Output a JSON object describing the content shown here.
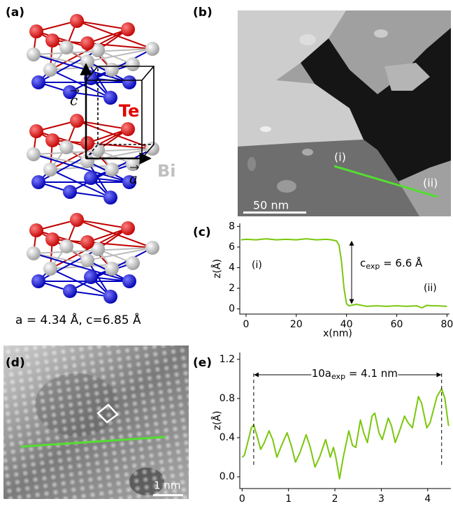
{
  "figure": {
    "panel_labels": [
      "(a)",
      "(b)",
      "(c)",
      "(d)",
      "(e)"
    ],
    "element_labels": [
      "Te",
      "Bi"
    ],
    "vector_labels": [
      "c",
      "a"
    ],
    "lattice_text": "a = 4.34 Å,  c=6.85 Å",
    "scale_bar_b": "50 nm",
    "scale_bar_d": "1 nm",
    "line_end_labels": [
      "(i)",
      "(ii)"
    ]
  },
  "chart_data": [
    {
      "type": "line",
      "xlabel": "x(nm)",
      "ylabel": "z(Å)",
      "x": [
        -2,
        0,
        4,
        8,
        12,
        16,
        20,
        24,
        28,
        32,
        34,
        36,
        37,
        38,
        39,
        40,
        41,
        42,
        44,
        48,
        52,
        56,
        60,
        64,
        68,
        70,
        72,
        74,
        76,
        80
      ],
      "series": [
        {
          "color": "#7ac70c",
          "values": [
            6.7,
            6.75,
            6.7,
            6.8,
            6.7,
            6.75,
            6.7,
            6.8,
            6.7,
            6.75,
            6.7,
            6.6,
            6.2,
            4.6,
            2.0,
            0.5,
            0.3,
            0.35,
            0.45,
            0.25,
            0.3,
            0.25,
            0.3,
            0.25,
            0.3,
            0.1,
            0.35,
            0.3,
            0.3,
            0.25
          ]
        }
      ],
      "xlim": [
        -2.5,
        81
      ],
      "ylim": [
        -0.5,
        8.3
      ],
      "xticks": [
        0,
        20,
        40,
        60,
        80
      ],
      "yticks": [
        0,
        2,
        4,
        6,
        8
      ],
      "annotations": [
        "(i)",
        "(ii)"
      ],
      "step_label": {
        "text": "c",
        "sub": "exp",
        "rest": " = 6.6 Å"
      }
    },
    {
      "type": "line",
      "xlabel": "x(nm)",
      "ylabel": "z(Å)",
      "x": [
        0,
        0.05,
        0.12,
        0.2,
        0.25,
        0.32,
        0.4,
        0.48,
        0.58,
        0.66,
        0.75,
        0.85,
        0.97,
        1.06,
        1.15,
        1.25,
        1.38,
        1.47,
        1.57,
        1.67,
        1.8,
        1.9,
        1.97,
        2.02,
        2.1,
        2.18,
        2.3,
        2.38,
        2.45,
        2.55,
        2.62,
        2.7,
        2.8,
        2.86,
        2.95,
        3.02,
        3.15,
        3.22,
        3.3,
        3.38,
        3.5,
        3.58,
        3.67,
        3.8,
        3.87,
        3.98,
        4.05,
        4.2,
        4.3,
        4.37,
        4.45
      ],
      "series": [
        {
          "color": "#7ac70c",
          "values": [
            0.2,
            0.22,
            0.35,
            0.5,
            0.53,
            0.42,
            0.28,
            0.35,
            0.47,
            0.38,
            0.2,
            0.32,
            0.45,
            0.32,
            0.15,
            0.25,
            0.43,
            0.3,
            0.1,
            0.2,
            0.38,
            0.2,
            0.3,
            0.2,
            -0.02,
            0.2,
            0.47,
            0.32,
            0.3,
            0.58,
            0.45,
            0.35,
            0.62,
            0.65,
            0.45,
            0.38,
            0.6,
            0.52,
            0.35,
            0.45,
            0.62,
            0.55,
            0.5,
            0.82,
            0.75,
            0.5,
            0.55,
            0.82,
            0.9,
            0.8,
            0.52
          ]
        }
      ],
      "xlim": [
        -0.05,
        4.5
      ],
      "ylim": [
        -0.12,
        1.27
      ],
      "xticks": [
        0,
        1,
        2,
        3,
        4
      ],
      "yticks": [
        {
          "value": 0,
          "label": "0.0"
        },
        0.4,
        0.8,
        1.2
      ],
      "markers": [
        0.25,
        4.3
      ],
      "span_label": {
        "text": "10a",
        "sub": "exp",
        "rest": " = 4.1 nm"
      }
    }
  ]
}
